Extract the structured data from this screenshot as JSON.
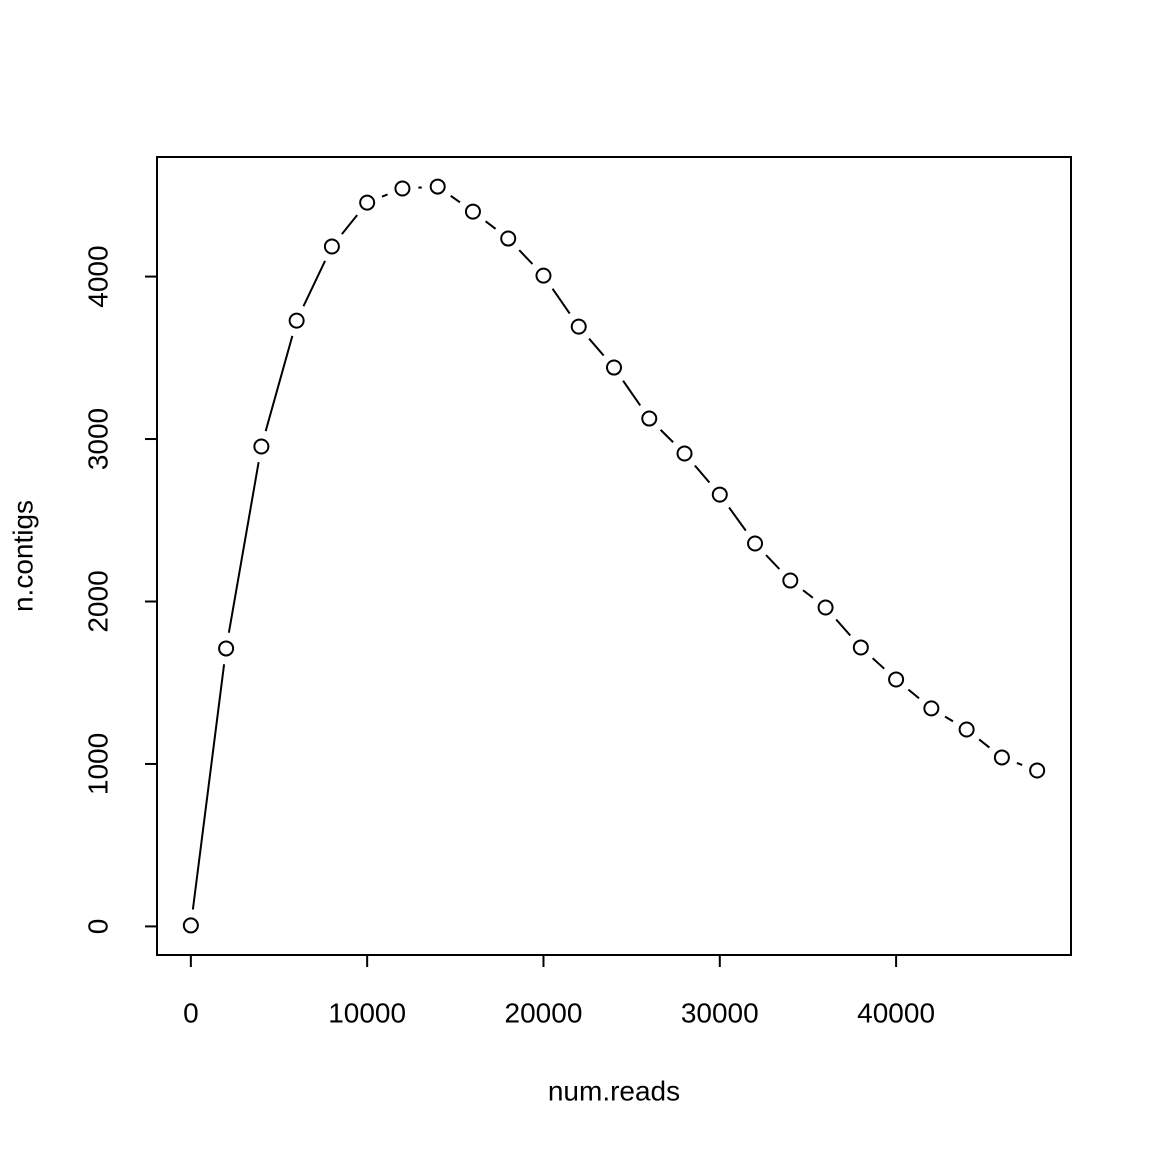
{
  "chart_data": {
    "type": "line",
    "x_label": "num.reads",
    "y_label": "n.contigs",
    "x": [
      0,
      2000,
      4000,
      6000,
      8000,
      10000,
      12000,
      14000,
      16000,
      18000,
      20000,
      22000,
      24000,
      26000,
      28000,
      30000,
      32000,
      34000,
      36000,
      38000,
      40000,
      42000,
      44000,
      46000,
      48000
    ],
    "values": [
      6,
      1711,
      2954,
      3729,
      4185,
      4455,
      4542,
      4554,
      4400,
      4234,
      4006,
      3692,
      3440,
      3126,
      2911,
      2658,
      2357,
      2129,
      1963,
      1717,
      1520,
      1342,
      1212,
      1040,
      960
    ],
    "color": "#000000",
    "xlim": [
      -1920,
      49920
    ],
    "xticks": [
      0,
      10000,
      20000,
      30000,
      40000
    ],
    "ylim": [
      -176,
      4736
    ],
    "yticks": [
      0,
      1000,
      2000,
      3000,
      4000
    ],
    "grid": false
  }
}
